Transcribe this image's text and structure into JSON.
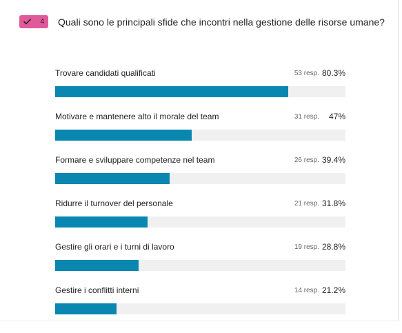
{
  "question": {
    "number": "4",
    "title": "Quali sono le principali sfide che incontri nella gestione delle risorse umane?",
    "badge_icon": "checkmark-icon",
    "badge_color": "#e05a9b"
  },
  "colors": {
    "bar_fill": "#0a87b0",
    "bar_track": "#f0f0f0"
  },
  "answers": [
    {
      "label": "Trovare candidati qualificati",
      "count": "53 resp.",
      "percent": "80.3%",
      "share": 80.3
    },
    {
      "label": "Motivare e mantenere alto il morale del team",
      "count": "31 resp.",
      "percent": "47%",
      "share": 47
    },
    {
      "label": "Formare e sviluppare competenze nel team",
      "count": "26 resp.",
      "percent": "39.4%",
      "share": 39.4
    },
    {
      "label": "Ridurre il turnover del personale",
      "count": "21 resp.",
      "percent": "31.8%",
      "share": 31.8
    },
    {
      "label": "Gestire gli orari e i turni di lavoro",
      "count": "19 resp.",
      "percent": "28.8%",
      "share": 28.8
    },
    {
      "label": "Gestire i conflitti interni",
      "count": "14 resp.",
      "percent": "21.2%",
      "share": 21.2
    }
  ]
}
